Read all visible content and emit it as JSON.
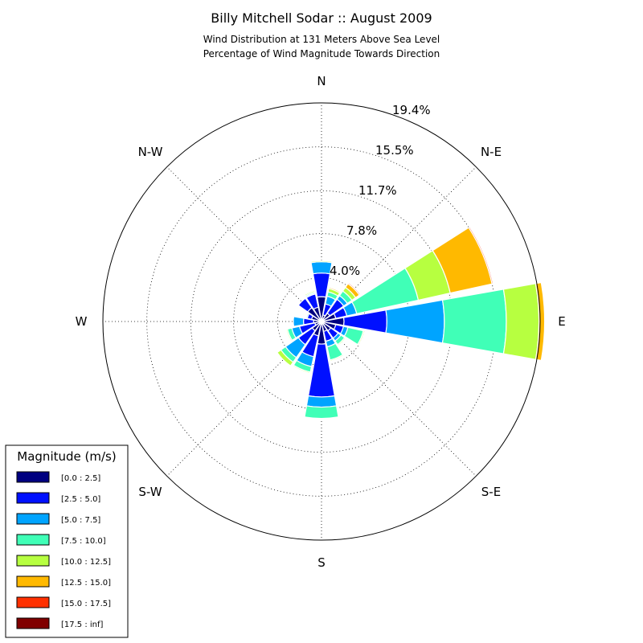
{
  "chart_data": {
    "type": "windrose",
    "title": "Billy Mitchell Sodar :: August 2009",
    "subtitle_lines": [
      "Wind Distribution at 131 Meters Above Sea Level",
      "Percentage of Wind Magnitude Towards Direction"
    ],
    "direction_labels": [
      "N",
      "N-E",
      "E",
      "S-E",
      "S",
      "S-W",
      "W",
      "N-W"
    ],
    "radial_ticks": [
      "4.0%",
      "7.8%",
      "11.7%",
      "15.5%",
      "19.4%"
    ],
    "radial_tick_values": [
      3.9,
      7.8,
      11.6,
      15.5,
      19.4
    ],
    "rmax": 19.4,
    "grid": true,
    "legend": {
      "title": "Magnitude (m/s)",
      "placement": "bottom-left",
      "bins": [
        "[0.0 : 2.5]",
        "[2.5 : 5.0]",
        "[5.0 : 7.5]",
        "[7.5 : 10.0]",
        "[10.0 : 12.5]",
        "[12.5 : 15.0]",
        "[15.0 : 17.5]",
        "[17.5 : inf]"
      ],
      "colors": [
        "#000080",
        "#0010ff",
        "#00a4ff",
        "#40ffb7",
        "#b7ff40",
        "#ffb900",
        "#ff3000",
        "#800000"
      ]
    },
    "sector_angles_deg": [
      0,
      22.5,
      45,
      67.5,
      90,
      112.5,
      135,
      157.5,
      180,
      202.5,
      225,
      247.5,
      270,
      292.5,
      315,
      337.5
    ],
    "cumulative_percent_by_direction": [
      [
        2.2,
        4.3,
        5.3,
        5.3,
        5.4,
        5.4,
        5.4,
        5.4
      ],
      [
        0.6,
        1.6,
        2.3,
        2.7,
        3.0,
        3.1,
        3.1,
        3.1
      ],
      [
        0.9,
        2.4,
        2.8,
        3.3,
        3.7,
        4.1,
        4.2,
        4.2
      ],
      [
        1.3,
        2.3,
        3.2,
        8.8,
        11.7,
        15.5,
        15.6,
        15.6
      ],
      [
        2.0,
        5.8,
        10.9,
        16.4,
        19.3,
        19.8,
        19.8,
        19.8
      ],
      [
        1.3,
        2.0,
        2.4,
        3.8,
        3.9,
        3.9,
        3.9,
        3.9
      ],
      [
        1.0,
        1.8,
        2.1,
        2.5,
        2.6,
        2.6,
        2.6,
        2.6
      ],
      [
        0.9,
        1.8,
        2.3,
        3.5,
        3.6,
        3.6,
        3.6,
        3.6
      ],
      [
        2.0,
        6.7,
        7.6,
        8.6,
        8.6,
        8.6,
        8.6,
        8.6
      ],
      [
        1.3,
        3.2,
        4.1,
        4.6,
        4.7,
        4.7,
        4.7,
        4.7
      ],
      [
        1.0,
        2.5,
        3.9,
        4.4,
        4.8,
        4.8,
        4.8,
        4.8
      ],
      [
        0.6,
        2.0,
        2.7,
        3.1,
        3.2,
        3.2,
        3.2,
        3.2
      ],
      [
        0.7,
        1.6,
        2.5,
        2.5,
        2.5,
        2.5,
        2.5,
        2.5
      ],
      [
        0.9,
        1.3,
        1.3,
        1.4,
        1.4,
        1.4,
        1.4,
        1.4
      ],
      [
        1.5,
        2.5,
        2.5,
        2.5,
        2.5,
        2.5,
        2.5,
        2.5
      ],
      [
        1.3,
        2.5,
        2.6,
        2.7,
        2.8,
        2.8,
        2.8,
        2.8
      ]
    ]
  }
}
